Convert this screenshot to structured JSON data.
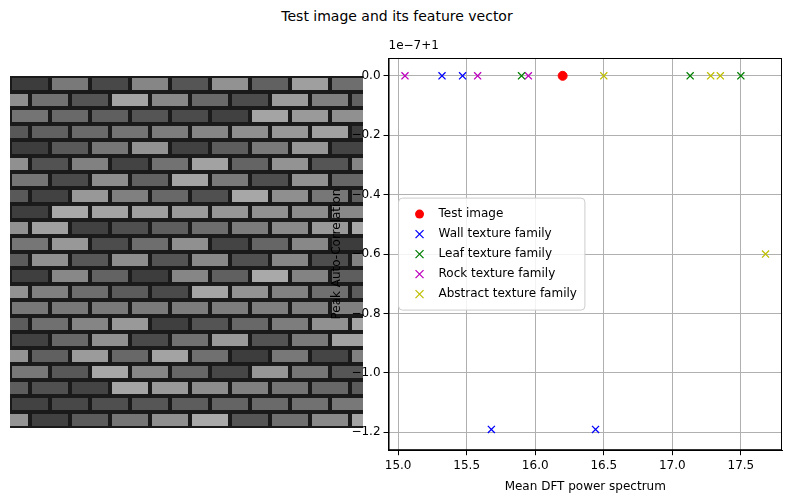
{
  "chart_data": {
    "type": "scatter",
    "title": "Test image and its feature vector",
    "x_label": "Mean DFT power spectrum",
    "y_label": "Peak Auto-Correlation",
    "y_offset_text": "1e−7+1",
    "xlim": [
      14.93,
      17.8
    ],
    "ylim": [
      -1.26,
      0.06
    ],
    "xticks": [
      {
        "value": 15.0,
        "label": "15.0"
      },
      {
        "value": 15.5,
        "label": "15.5"
      },
      {
        "value": 16.0,
        "label": "16.0"
      },
      {
        "value": 16.5,
        "label": "16.5"
      },
      {
        "value": 17.0,
        "label": "17.0"
      },
      {
        "value": 17.5,
        "label": "17.5"
      }
    ],
    "yticks": [
      {
        "value": -1.2,
        "label": "−1.2"
      },
      {
        "value": -1.0,
        "label": "−1.0"
      },
      {
        "value": -0.8,
        "label": "−0.8"
      },
      {
        "value": -0.6,
        "label": "−0.6"
      },
      {
        "value": -0.4,
        "label": "−0.4"
      },
      {
        "value": -0.2,
        "label": "−0.2"
      },
      {
        "value": 0.0,
        "label": "0.0"
      }
    ],
    "grid": true,
    "legend": "center left",
    "series": [
      {
        "name": "Test image",
        "color": "#ff0000",
        "marker": "o",
        "x": [
          16.2
        ],
        "y": [
          0
        ]
      },
      {
        "name": "Wall texture family",
        "color": "#0000ff",
        "marker": "x",
        "x": [
          15.32,
          15.47,
          15.68,
          16.44
        ],
        "y": [
          0,
          0,
          -1.19,
          -1.19
        ]
      },
      {
        "name": "Leaf texture family",
        "color": "#008000",
        "marker": "x",
        "x": [
          15.9,
          17.13,
          17.5
        ],
        "y": [
          0,
          0,
          0
        ]
      },
      {
        "name": "Rock texture family",
        "color": "#bf00bf",
        "marker": "x",
        "x": [
          15.05,
          15.58,
          15.95
        ],
        "y": [
          0,
          0,
          0
        ]
      },
      {
        "name": "Abstract texture family",
        "color": "#bfbf00",
        "marker": "x",
        "x": [
          16.5,
          17.28,
          17.35,
          17.68
        ],
        "y": [
          0,
          0,
          0,
          -0.6
        ]
      }
    ]
  }
}
